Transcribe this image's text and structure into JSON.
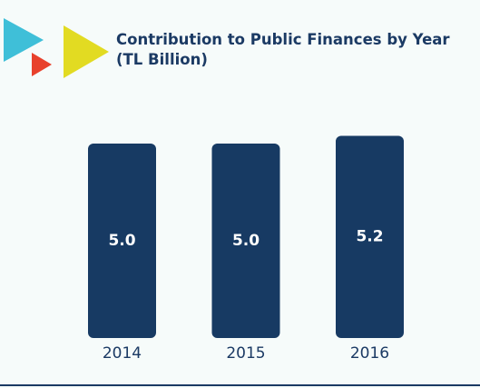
{
  "chart_data": {
    "type": "bar",
    "title": "Contribution to Public Finances by Year",
    "subtitle": "(TL Billion)",
    "categories": [
      "2014",
      "2015",
      "2016"
    ],
    "values": [
      5.0,
      5.0,
      5.2
    ],
    "value_labels": [
      "5.0",
      "5.0",
      "5.2"
    ],
    "color": "#173a63"
  }
}
